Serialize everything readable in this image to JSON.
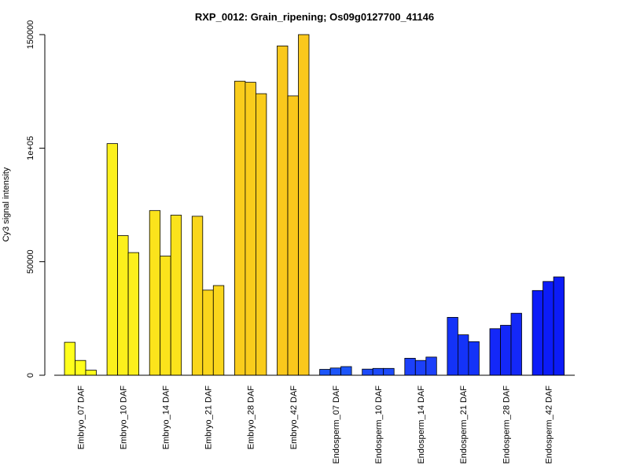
{
  "chart_data": {
    "type": "bar",
    "title": "RXP_0012: Grain_ripening; Os09g0127700_41146",
    "xlabel": "",
    "ylabel": "Cy3 signal intensity",
    "ylim": [
      0,
      150000
    ],
    "yticks": [
      0,
      50000,
      100000,
      150000
    ],
    "ytick_labels": [
      "0",
      "50000",
      "1e+05",
      "150000"
    ],
    "grid": false,
    "legend": "none",
    "categories": [
      "Embryo_07 DAF",
      "Embryo_10 DAF",
      "Embryo_14 DAF",
      "Embryo_21 DAF",
      "Embryo_28 DAF",
      "Embryo_42 DAF",
      "Endosperm_07 DAF",
      "Endosperm_10 DAF",
      "Endosperm_14 DAF",
      "Endosperm_21 DAF",
      "Endosperm_28 DAF",
      "Endosperm_42 DAF"
    ],
    "colors": [
      "#ffff1c",
      "#fcf01c",
      "#fbe31c",
      "#fad61c",
      "#f9cc1c",
      "#fac81c",
      "#1c55fa",
      "#1c4afa",
      "#1c40fa",
      "#1433f8",
      "#1428f8",
      "#0c1cf8"
    ],
    "replicate_values": [
      [
        14500,
        6500,
        2200
      ],
      [
        102000,
        61500,
        54000
      ],
      [
        72500,
        52500,
        70500
      ],
      [
        70000,
        37500,
        39500
      ],
      [
        129500,
        129000,
        124000
      ],
      [
        145000,
        123000,
        150000
      ],
      [
        2600,
        3200,
        3800
      ],
      [
        2700,
        3000,
        3000
      ],
      [
        7500,
        6500,
        8000
      ],
      [
        25500,
        17800,
        14800
      ],
      [
        20500,
        22000,
        27300
      ],
      [
        37300,
        41300,
        43300
      ]
    ]
  }
}
